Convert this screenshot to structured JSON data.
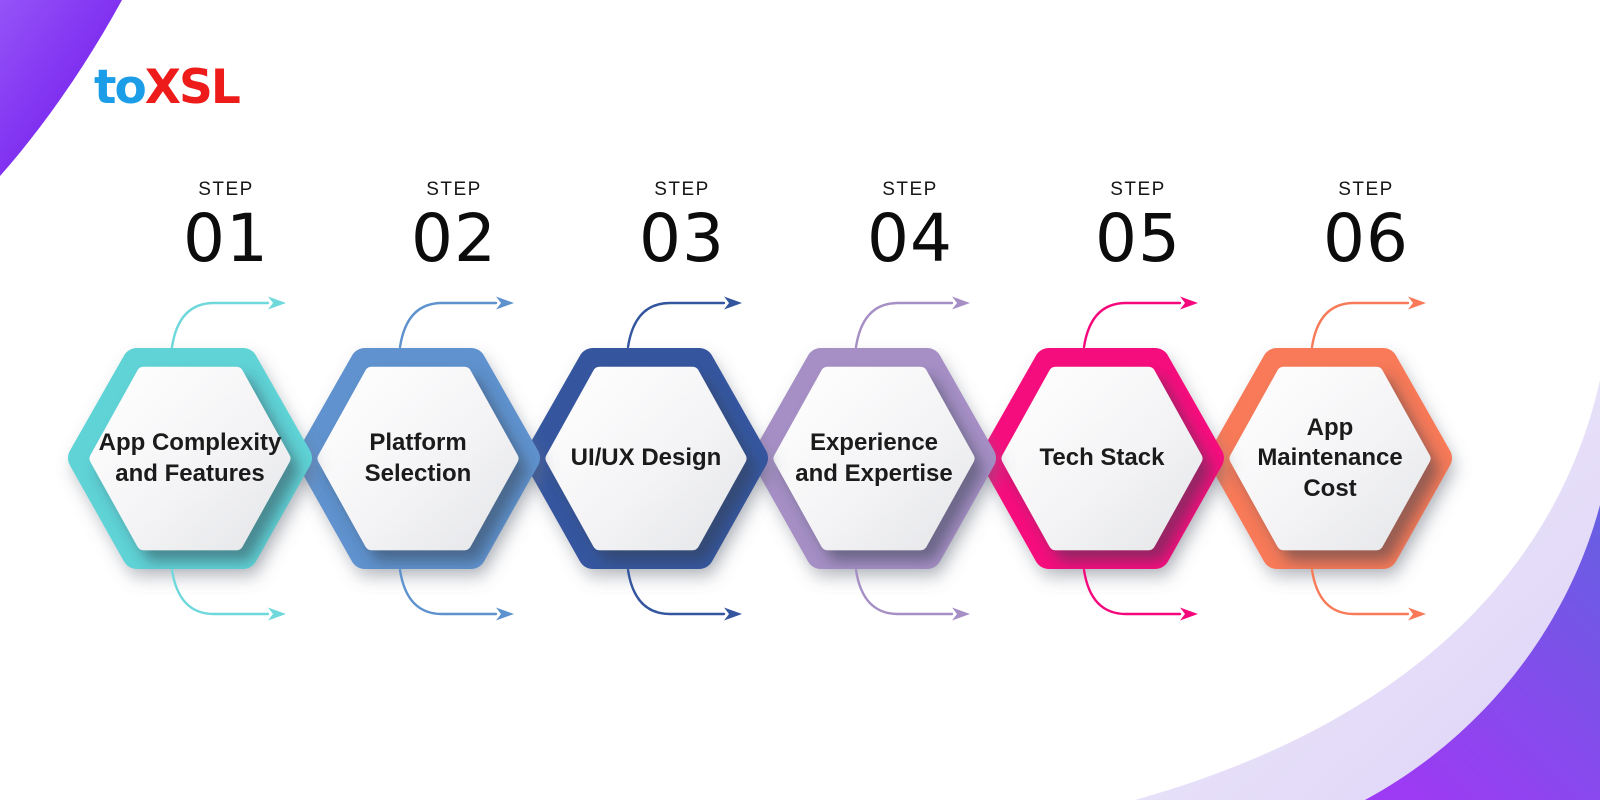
{
  "logo": {
    "part1": "to",
    "part2": "XSL",
    "part1_color": "#1B9DE8",
    "part2_color": "#EE1B1B"
  },
  "steps": [
    {
      "label": "STEP",
      "number": "01",
      "title": "App Complexity and Features",
      "title_lines": [
        "App Complexity",
        "and Features"
      ],
      "color": "#5ED3D6",
      "arrow_color": "#6FD8DB"
    },
    {
      "label": "STEP",
      "number": "02",
      "title": "Platform Selection",
      "title_lines": [
        "Platform",
        "Selection"
      ],
      "color": "#5E92CE",
      "arrow_color": "#5E92CE"
    },
    {
      "label": "STEP",
      "number": "03",
      "title": "UI/UX Design",
      "title_lines": [
        "UI/UX Design"
      ],
      "color": "#34569F",
      "arrow_color": "#34569F"
    },
    {
      "label": "STEP",
      "number": "04",
      "title": "Experience and Expertise",
      "title_lines": [
        "Experience",
        "and Expertise"
      ],
      "color": "#A68FC5",
      "arrow_color": "#A68FC5"
    },
    {
      "label": "STEP",
      "number": "05",
      "title": "Tech Stack",
      "title_lines": [
        "Tech Stack"
      ],
      "color": "#F6087D",
      "arrow_color": "#F6087D"
    },
    {
      "label": "STEP",
      "number": "06",
      "title": "App Maintenance Cost",
      "title_lines": [
        "App",
        "Maintenance",
        "Cost"
      ],
      "color": "#F87A58",
      "arrow_color": "#F87A58"
    }
  ],
  "background": {
    "corner_purple_from": "#9553F7",
    "corner_purple_to": "#6C11EB",
    "swoosh_light_from": "#F1EDFC",
    "swoosh_light_to": "#DDD3F6",
    "swoosh_purple_from": "#6660E2",
    "swoosh_purple_to": "#9C3BF3"
  }
}
